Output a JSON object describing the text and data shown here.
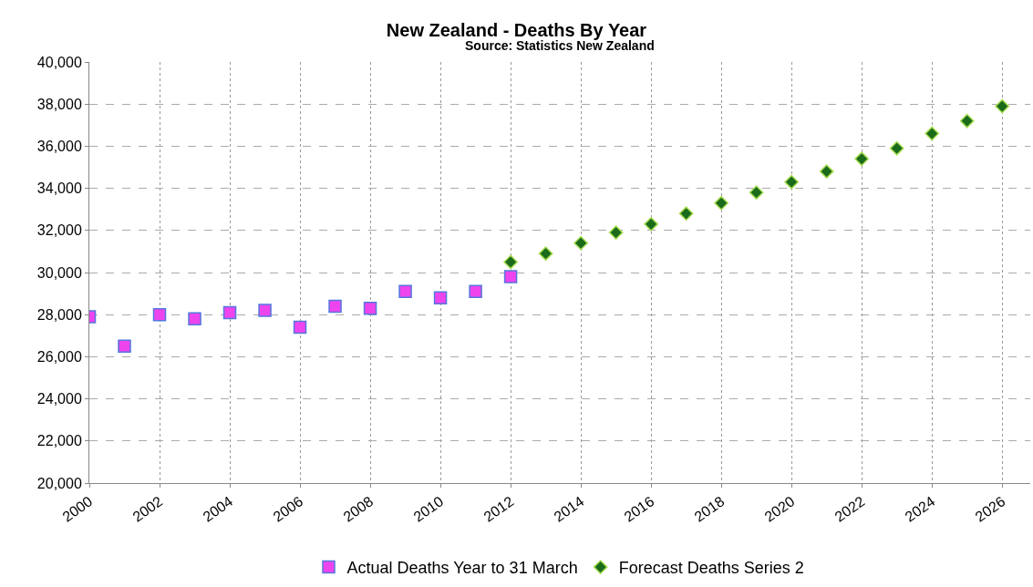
{
  "chart_data": {
    "type": "scatter",
    "title": "New Zealand - Deaths By Year",
    "subtitle": "Source: Statistics New Zealand",
    "xlim": [
      2000,
      2026.8
    ],
    "xticks": [
      2000,
      2002,
      2004,
      2006,
      2008,
      2010,
      2012,
      2014,
      2016,
      2018,
      2020,
      2022,
      2024,
      2026
    ],
    "ylim": [
      20000,
      40000
    ],
    "yticks": [
      {
        "value": 20000,
        "label": "20,000"
      },
      {
        "value": 22000,
        "label": "22,000"
      },
      {
        "value": 24000,
        "label": "24,000"
      },
      {
        "value": 26000,
        "label": "26,000"
      },
      {
        "value": 28000,
        "label": "28,000"
      },
      {
        "value": 30000,
        "label": "30,000"
      },
      {
        "value": 32000,
        "label": "32,000"
      },
      {
        "value": 34000,
        "label": "34,000"
      },
      {
        "value": 36000,
        "label": "36,000"
      },
      {
        "value": 38000,
        "label": "38,000"
      },
      {
        "value": 40000,
        "label": "40,000"
      }
    ],
    "grid": true,
    "legend": "bottom",
    "series": [
      {
        "name": "Actual Deaths Year to 31 March",
        "color": "#ee44ee",
        "marker": "square",
        "x": [
          2000,
          2001,
          2002,
          2003,
          2004,
          2005,
          2006,
          2007,
          2008,
          2009,
          2010,
          2011,
          2012
        ],
        "values": [
          27900,
          26500,
          28000,
          27800,
          28100,
          28200,
          27400,
          28400,
          28300,
          29100,
          28800,
          29100,
          29800
        ]
      },
      {
        "name": "Forecast Deaths Series 2",
        "color": "#1a6b1a",
        "marker": "diamond",
        "x": [
          2012,
          2013,
          2014,
          2015,
          2016,
          2017,
          2018,
          2019,
          2020,
          2021,
          2022,
          2023,
          2024,
          2025,
          2026
        ],
        "values": [
          30500,
          30900,
          31400,
          31900,
          32300,
          32800,
          33300,
          33800,
          34300,
          34800,
          35400,
          35900,
          36600,
          37200,
          37900
        ]
      }
    ]
  }
}
